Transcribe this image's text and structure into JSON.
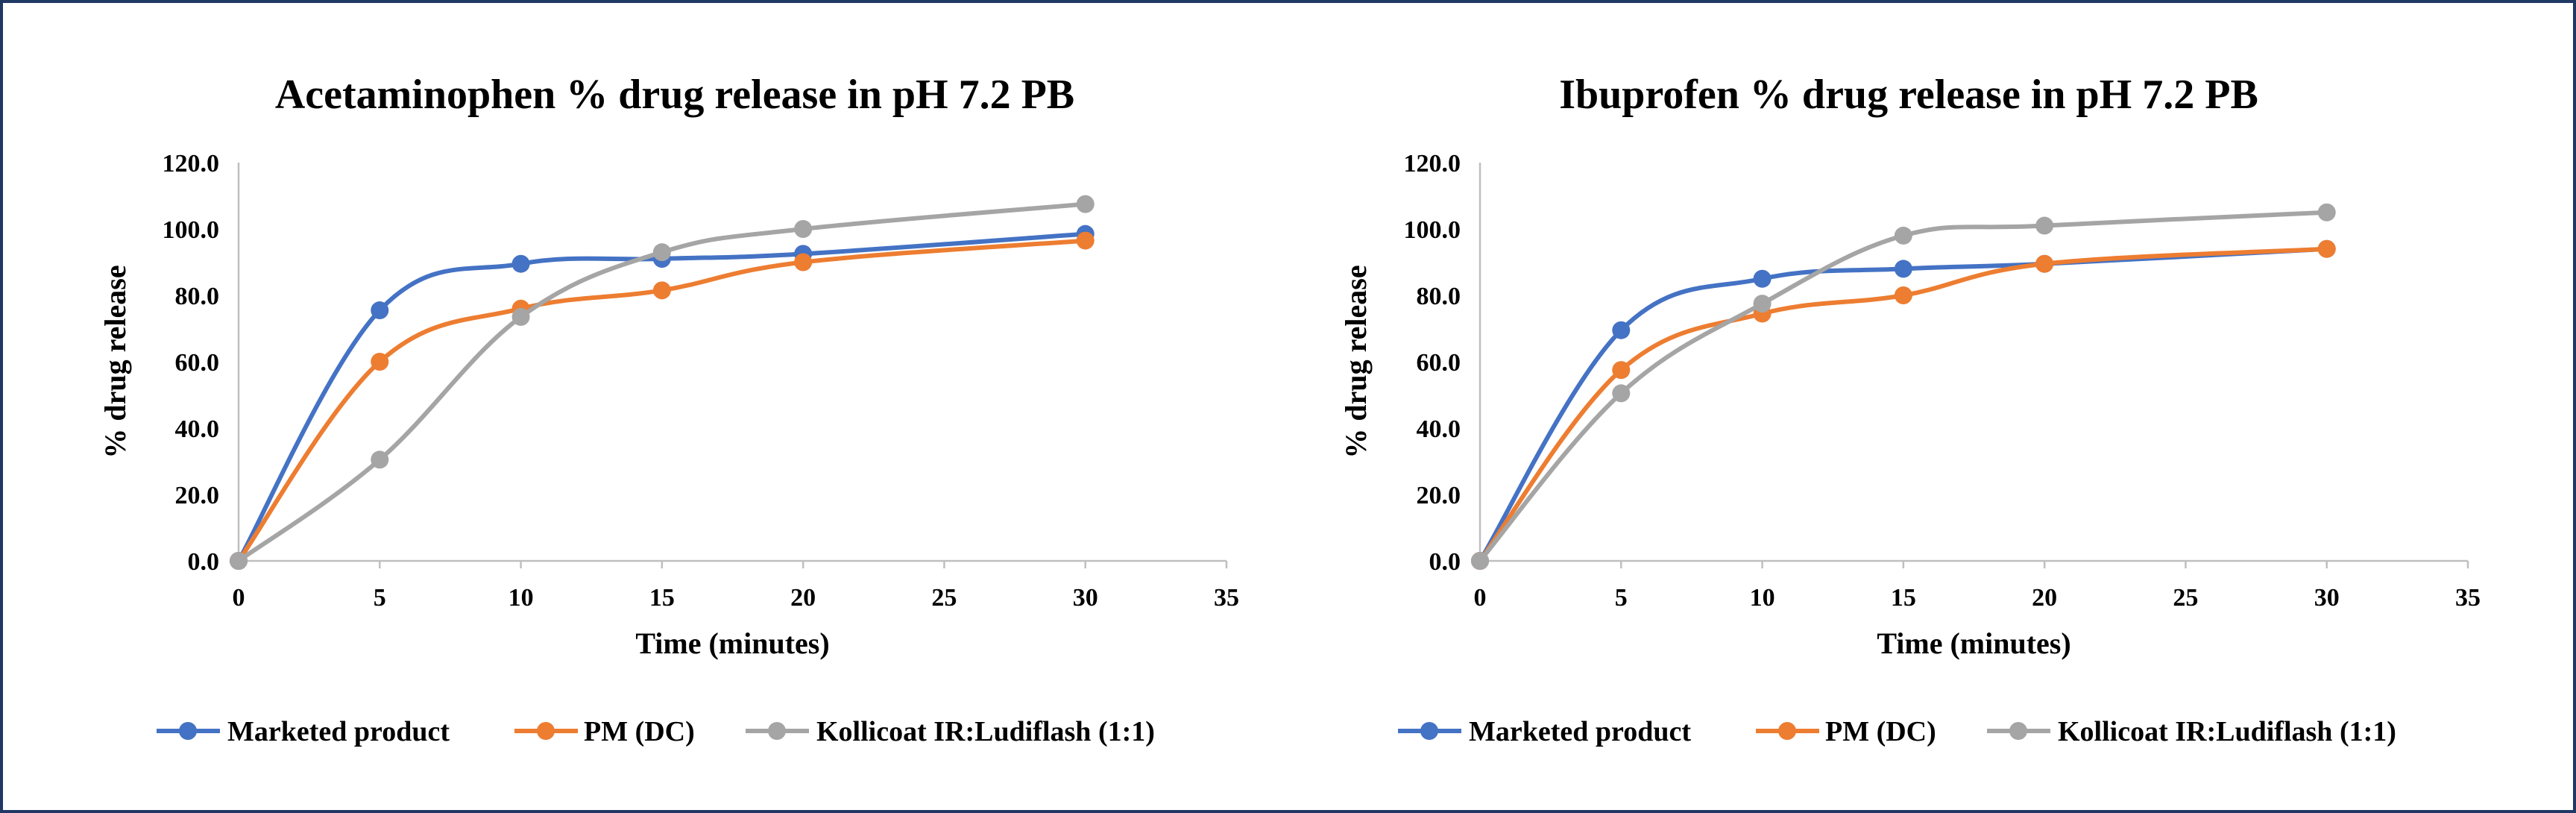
{
  "chart_data": [
    {
      "type": "line",
      "title": "Acetaminophen % drug release in pH 7.2 PB",
      "xlabel": "Time (minutes)",
      "ylabel": "% drug release",
      "xlim": [
        0,
        35
      ],
      "ylim": [
        0,
        120
      ],
      "x_ticks": [
        "0",
        "5",
        "10",
        "15",
        "20",
        "25",
        "30",
        "35"
      ],
      "y_ticks": [
        "0.0",
        "20.0",
        "40.0",
        "60.0",
        "80.0",
        "100.0",
        "120.0"
      ],
      "grid": false,
      "legend_position": "bottom",
      "smooth": true,
      "series": [
        {
          "name": "Marketed product",
          "color": "#4472c4",
          "x": [
            0,
            5,
            10,
            15,
            20,
            30
          ],
          "y": [
            0,
            75.5,
            89.5,
            91,
            92.5,
            98.5
          ]
        },
        {
          "name": "PM (DC)",
          "color": "#ed7d31",
          "x": [
            0,
            5,
            10,
            15,
            20,
            30
          ],
          "y": [
            0,
            60,
            76,
            81.5,
            90,
            96.5
          ]
        },
        {
          "name": "Kollicoat IR:Ludiflash (1:1)",
          "color": "#a5a5a5",
          "x": [
            0,
            5,
            10,
            15,
            20,
            30
          ],
          "y": [
            0,
            30.5,
            73.5,
            93,
            100,
            107.5
          ]
        }
      ]
    },
    {
      "type": "line",
      "title": "Ibuprofen % drug release in pH 7.2 PB",
      "xlabel": "Time (minutes)",
      "ylabel": "% drug release",
      "xlim": [
        0,
        35
      ],
      "ylim": [
        0,
        120
      ],
      "x_ticks": [
        "0",
        "5",
        "10",
        "15",
        "20",
        "25",
        "30",
        "35"
      ],
      "y_ticks": [
        "0.0",
        "20.0",
        "40.0",
        "60.0",
        "80.0",
        "100.0",
        "120.0"
      ],
      "grid": false,
      "legend_position": "bottom",
      "smooth": true,
      "series": [
        {
          "name": "Marketed product",
          "color": "#4472c4",
          "x": [
            0,
            5,
            10,
            15,
            20,
            30
          ],
          "y": [
            0,
            69.5,
            85,
            88,
            89.5,
            94
          ]
        },
        {
          "name": "PM (DC)",
          "color": "#ed7d31",
          "x": [
            0,
            5,
            10,
            15,
            20,
            30
          ],
          "y": [
            0,
            57.5,
            74.5,
            80,
            89.5,
            94
          ]
        },
        {
          "name": "Kollicoat IR:Ludiflash (1:1)",
          "color": "#a5a5a5",
          "x": [
            0,
            5,
            10,
            15,
            20,
            30
          ],
          "y": [
            0,
            50.5,
            77.5,
            98,
            101,
            105
          ]
        }
      ]
    }
  ]
}
